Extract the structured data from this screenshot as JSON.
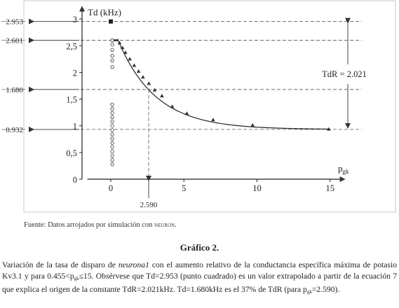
{
  "chart_data": {
    "type": "scatter",
    "title": "",
    "ylabel": "Td (kHz)",
    "xlabel": "pgk",
    "xlabel_main": "p",
    "xlabel_sub": "gk",
    "xlim": [
      -1.6,
      16.0
    ],
    "ylim": [
      0,
      3.1
    ],
    "x_ticks": [
      0,
      5,
      10,
      15
    ],
    "y_ticks": [
      0,
      0.5,
      1,
      1.5,
      2,
      2.5,
      3
    ],
    "y_tick_labels": [
      "0",
      "0,5",
      "1",
      "1,5",
      "2",
      "2,5",
      "3"
    ],
    "grid": false,
    "square_point": {
      "x": 0,
      "y": 2.953
    },
    "triangle_points": [
      {
        "x": 0.6,
        "y": 2.55
      },
      {
        "x": 0.8,
        "y": 2.46
      },
      {
        "x": 1.0,
        "y": 2.37
      },
      {
        "x": 1.3,
        "y": 2.25
      },
      {
        "x": 1.6,
        "y": 2.13
      },
      {
        "x": 1.9,
        "y": 2.02
      },
      {
        "x": 2.2,
        "y": 1.91
      },
      {
        "x": 2.6,
        "y": 1.79
      },
      {
        "x": 3.0,
        "y": 1.67
      },
      {
        "x": 3.5,
        "y": 1.56
      },
      {
        "x": 4.2,
        "y": 1.36
      },
      {
        "x": 5.2,
        "y": 1.23
      },
      {
        "x": 7.0,
        "y": 1.11
      },
      {
        "x": 9.7,
        "y": 1.01
      },
      {
        "x": 14.9,
        "y": 0.935
      }
    ],
    "open_circle_points": [
      {
        "x": 0.1,
        "y": 2.6
      },
      {
        "x": 0.1,
        "y": 2.52
      },
      {
        "x": 0.1,
        "y": 2.42
      },
      {
        "x": 0.1,
        "y": 2.31
      },
      {
        "x": 0.1,
        "y": 2.22
      },
      {
        "x": 0.1,
        "y": 2.1
      },
      {
        "x": 0.1,
        "y": 1.4
      },
      {
        "x": 0.1,
        "y": 1.32
      },
      {
        "x": 0.1,
        "y": 1.24
      },
      {
        "x": 0.1,
        "y": 1.16
      },
      {
        "x": 0.1,
        "y": 1.08
      },
      {
        "x": 0.1,
        "y": 1.0
      },
      {
        "x": 0.1,
        "y": 0.92
      },
      {
        "x": 0.1,
        "y": 0.84
      },
      {
        "x": 0.1,
        "y": 0.76
      },
      {
        "x": 0.1,
        "y": 0.68
      },
      {
        "x": 0.1,
        "y": 0.6
      },
      {
        "x": 0.1,
        "y": 0.52
      },
      {
        "x": 0.1,
        "y": 0.44
      },
      {
        "x": 0.1,
        "y": 0.36
      },
      {
        "x": 0.1,
        "y": 0.28
      }
    ],
    "plateau": {
      "x_start": 0.1,
      "x_end": 0.5,
      "y": 2.601
    },
    "fit_curve": {
      "asymptote": 0.932,
      "TdR": 2.021,
      "x_start": 0.455,
      "x_end": 15,
      "tau_x": 2.59
    },
    "reference_lines": {
      "horizontal": [
        {
          "y": 2.953,
          "label": "2.953"
        },
        {
          "y": 2.601,
          "label": "2.601"
        },
        {
          "y": 1.68,
          "label": "1.680"
        },
        {
          "y": 0.932,
          "label": "0.932"
        }
      ],
      "vertical": [
        {
          "x": 2.59,
          "label": "2.590"
        }
      ]
    },
    "annotations": [
      {
        "text": "TdR = 2.021",
        "from_y": 2.953,
        "to_y": 0.932
      }
    ]
  },
  "source": {
    "prefix": "Fuente: Datos arrojados por simulación con ",
    "tool": "neuron",
    "suffix": "."
  },
  "caption": {
    "title": "Gráfico 2.",
    "p1": "Variación de la tasa de disparo de ",
    "p1_em": "neurona1",
    "p2": " con el aumento relativo de la conductancia específica máxima de potasio Kv3.1 y para 0.455<p",
    "sub1": "gk",
    "p3": "≤15. Obsérvese que Td=2.953 (punto cuadrado) es un valor extrapolado a partir de la ecuación 7 que explica el origen de la constante TdR=2.021kHz. Td=1.680kHz es el 37% de TdR (para p",
    "sub2": "gk",
    "p4": "=2.590)."
  }
}
